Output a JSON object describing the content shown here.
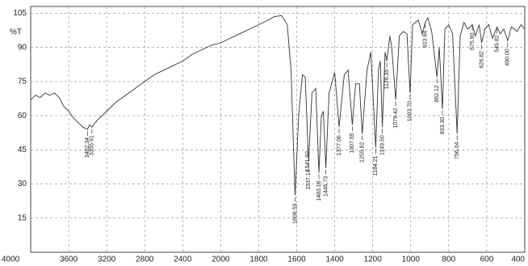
{
  "chart_data": {
    "type": "line",
    "y_label": "%T",
    "color": "#333333",
    "grid": true,
    "xlim": [
      4000,
      400
    ],
    "ylim": [
      0,
      108
    ],
    "xticks": [
      4000,
      3600,
      3200,
      2800,
      2400,
      2000,
      1800,
      1600,
      1400,
      1200,
      1000,
      800,
      600,
      400
    ],
    "yticks": [
      15,
      30,
      45,
      60,
      75,
      90,
      105
    ],
    "x": [
      4000,
      3950,
      3900,
      3850,
      3800,
      3750,
      3700,
      3650,
      3600,
      3550,
      3500,
      3450,
      3402.34,
      3380,
      3355.91,
      3300,
      3200,
      3100,
      3000,
      2900,
      2800,
      2700,
      2600,
      2500,
      2400,
      2300,
      2200,
      2100,
      2000,
      1900,
      1800,
      1750,
      1720,
      1680,
      1650,
      1630,
      1608.59,
      1590,
      1570,
      1555,
      1541.92,
      1537.16,
      1520,
      1500,
      1483.16,
      1470,
      1460,
      1446.73,
      1430,
      1400,
      1377.06,
      1350,
      1330,
      1307.65,
      1290,
      1270,
      1255.62,
      1230,
      1210,
      1184.21,
      1170,
      1160,
      1149.5,
      1135,
      1126.35,
      1110,
      1100,
      1079.42,
      1060,
      1040,
      1020,
      1003.7,
      990,
      960,
      940,
      923.84,
      910,
      890,
      862.12,
      850,
      833.3,
      820,
      800,
      780,
      756.04,
      740,
      720,
      700,
      675.9,
      660,
      640,
      626.82,
      610,
      590,
      570,
      545.82,
      530,
      510,
      490,
      470,
      440,
      420,
      400
    ],
    "values": [
      67,
      69,
      68,
      70,
      69,
      70,
      68,
      64,
      62,
      59,
      57,
      55,
      54,
      56,
      55,
      58,
      62,
      66,
      69,
      72,
      75,
      78,
      80,
      82,
      84,
      87,
      89,
      91,
      92,
      96,
      100,
      102,
      103.5,
      104,
      100,
      80,
      25,
      60,
      78,
      77,
      48,
      40,
      70,
      72,
      35,
      60,
      62,
      37,
      70,
      79,
      55,
      78,
      80,
      56,
      74,
      74,
      52,
      80,
      88,
      46,
      80,
      84,
      55,
      88,
      84,
      95,
      90,
      67,
      95,
      97,
      96,
      70,
      100,
      102,
      96,
      101,
      103,
      97,
      77,
      90,
      63,
      98,
      100,
      96,
      52,
      95,
      101,
      98,
      100,
      95,
      100,
      92,
      98,
      100,
      94,
      99,
      96,
      98,
      93,
      99,
      97,
      100,
      98
    ],
    "peaks": [
      {
        "x": 3402.34,
        "y": 54,
        "label": "3402.34"
      },
      {
        "x": 3355.91,
        "y": 55,
        "label": "3355.91"
      },
      {
        "x": 1608.59,
        "y": 25,
        "label": "1608.59"
      },
      {
        "x": 1541.92,
        "y": 48,
        "label": "1541.92"
      },
      {
        "x": 1537.16,
        "y": 40,
        "label": "1537.16"
      },
      {
        "x": 1483.16,
        "y": 35,
        "label": "1483.16"
      },
      {
        "x": 1446.73,
        "y": 37,
        "label": "1446.73"
      },
      {
        "x": 1377.06,
        "y": 55,
        "label": "1377.06"
      },
      {
        "x": 1307.65,
        "y": 56,
        "label": "1307.65"
      },
      {
        "x": 1255.62,
        "y": 52,
        "label": "1255.62"
      },
      {
        "x": 1184.21,
        "y": 46,
        "label": "1184.21"
      },
      {
        "x": 1149.5,
        "y": 55,
        "label": "1149.50"
      },
      {
        "x": 1126.35,
        "y": 84,
        "label": "1126.35"
      },
      {
        "x": 1079.42,
        "y": 67,
        "label": "1079.42"
      },
      {
        "x": 1003.7,
        "y": 70,
        "label": "1003.70"
      },
      {
        "x": 923.84,
        "y": 101,
        "label": "923.84"
      },
      {
        "x": 862.12,
        "y": 77,
        "label": "862.12"
      },
      {
        "x": 833.3,
        "y": 63,
        "label": "833.30"
      },
      {
        "x": 756.04,
        "y": 52,
        "label": "756.04"
      },
      {
        "x": 675.9,
        "y": 100,
        "label": "675.90"
      },
      {
        "x": 626.82,
        "y": 92,
        "label": "626.82"
      },
      {
        "x": 545.82,
        "y": 99,
        "label": "545.82"
      },
      {
        "x": 490,
        "y": 93,
        "label": "490.00"
      }
    ]
  }
}
